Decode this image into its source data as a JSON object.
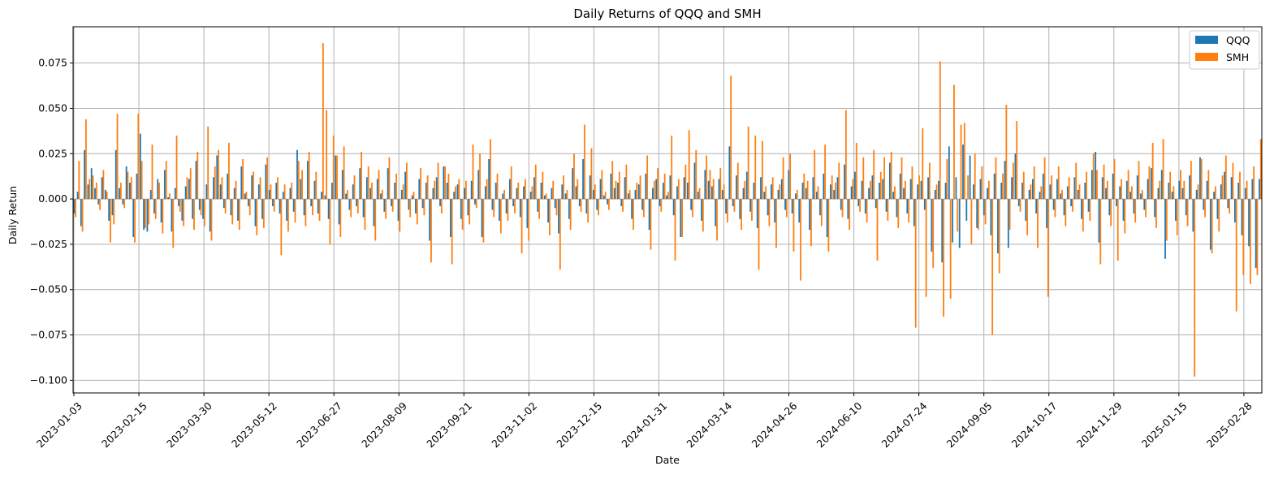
{
  "chart_data": {
    "type": "bar",
    "title": "Daily Returns of QQQ and SMH",
    "xlabel": "Date",
    "ylabel": "Daily Retun",
    "ylim": [
      -0.107,
      0.095
    ],
    "yticks": [
      -0.1,
      -0.075,
      -0.05,
      -0.025,
      0.0,
      0.025,
      0.05,
      0.075
    ],
    "ytick_labels": [
      "−0.100",
      "−0.075",
      "−0.050",
      "−0.025",
      "0.000",
      "0.025",
      "0.050",
      "0.075"
    ],
    "xticks": [
      "2023-01-03",
      "2023-02-15",
      "2023-03-30",
      "2023-05-12",
      "2023-06-27",
      "2023-08-09",
      "2023-09-21",
      "2023-11-02",
      "2023-12-15",
      "2024-01-31",
      "2024-03-14",
      "2024-04-26",
      "2024-06-10",
      "2024-07-24",
      "2024-09-05",
      "2024-10-17",
      "2024-11-29",
      "2025-01-15",
      "2025-02-28"
    ],
    "grid": true,
    "legend": "upper right",
    "series_colors": {
      "QQQ": "#1f77b4",
      "SMH": "#ff7f0e"
    },
    "series_trading_days_approx": 545,
    "series": [
      {
        "name": "QQQ",
        "values": [
          -0.008,
          0.004,
          -0.015,
          0.027,
          0.008,
          0.017,
          0.006,
          -0.003,
          0.012,
          0.005,
          -0.012,
          -0.009,
          0.027,
          0.006,
          -0.003,
          0.018,
          0.009,
          -0.021,
          0.014,
          0.036,
          -0.017,
          -0.018,
          0.005,
          -0.008,
          0.011,
          -0.013,
          0.016,
          0.001,
          -0.018,
          0.006,
          -0.004,
          -0.012,
          0.007,
          0.011,
          -0.011,
          0.021,
          -0.006,
          -0.011,
          0.008,
          -0.018,
          0.012,
          0.024,
          0.008,
          -0.005,
          0.014,
          -0.009,
          0.006,
          -0.012,
          0.018,
          0.003,
          -0.004,
          0.013,
          -0.015,
          0.008,
          -0.011,
          0.019,
          0.005,
          -0.004,
          0.009,
          -0.008,
          0.004,
          -0.012,
          0.006,
          -0.007,
          0.027,
          0.011,
          -0.009,
          0.021,
          -0.004,
          0.01,
          -0.008,
          0.004,
          0.002,
          -0.011,
          0.009,
          0.024,
          -0.014,
          0.016,
          0.003,
          -0.006,
          0.008,
          -0.004,
          0.017,
          -0.01,
          0.012,
          0.006,
          -0.015,
          0.011,
          0.003,
          -0.007,
          0.017,
          -0.004,
          0.009,
          -0.012,
          0.005,
          0.015,
          -0.006,
          0.002,
          -0.008,
          0.011,
          -0.005,
          0.009,
          -0.023,
          0.006,
          0.012,
          -0.004,
          0.018,
          0.009,
          -0.021,
          0.004,
          0.008,
          -0.011,
          0.006,
          -0.009,
          0.01,
          -0.003,
          0.016,
          -0.021,
          0.007,
          0.022,
          -0.006,
          0.009,
          -0.012,
          0.003,
          -0.008,
          0.011,
          -0.004,
          0.006,
          -0.01,
          0.007,
          -0.016,
          0.004,
          0.012,
          -0.007,
          0.009,
          0.002,
          -0.013,
          0.006,
          -0.005,
          -0.019,
          0.008,
          0.003,
          -0.011,
          0.017,
          0.007,
          -0.004,
          0.022,
          -0.008,
          0.013,
          0.005,
          -0.006,
          0.011,
          0.002,
          -0.003,
          0.014,
          0.006,
          0.009,
          -0.004,
          0.012,
          0.003,
          -0.011,
          0.005,
          0.008,
          -0.006,
          0.014,
          -0.017,
          0.006,
          0.011,
          -0.004,
          0.009,
          0.002,
          0.013,
          -0.009,
          0.007,
          -0.021,
          0.012,
          0.009,
          -0.006,
          0.02,
          0.004,
          -0.012,
          0.016,
          0.01,
          0.007,
          -0.015,
          0.011,
          0.005,
          -0.008,
          0.029,
          -0.004,
          0.013,
          -0.011,
          0.006,
          0.015,
          -0.007,
          0.009,
          -0.016,
          0.012,
          0.004,
          -0.009,
          0.008,
          -0.013,
          0.005,
          0.011,
          -0.006,
          0.016,
          -0.008,
          0.003,
          -0.013,
          0.009,
          0.006,
          -0.017,
          0.012,
          0.004,
          -0.009,
          0.014,
          -0.021,
          0.008,
          0.005,
          0.012,
          -0.006,
          0.019,
          -0.011,
          0.007,
          0.015,
          -0.004,
          0.01,
          -0.008,
          0.006,
          0.013,
          -0.005,
          0.009,
          0.011,
          -0.007,
          0.02,
          0.004,
          -0.01,
          0.014,
          0.006,
          -0.008,
          0.011,
          -0.015,
          0.008,
          0.01,
          -0.006,
          0.012,
          -0.029,
          0.005,
          0.01,
          -0.035,
          0.009,
          0.029,
          -0.024,
          0.012,
          -0.027,
          0.03,
          -0.012,
          0.024,
          0.008,
          -0.016,
          0.011,
          -0.009,
          0.006,
          -0.02,
          0.014,
          -0.03,
          0.009,
          0.021,
          -0.027,
          0.012,
          0.025,
          -0.004,
          0.009,
          -0.012,
          0.005,
          0.011,
          -0.008,
          0.004,
          0.014,
          -0.016,
          0.008,
          -0.006,
          0.011,
          0.003,
          -0.009,
          0.007,
          -0.004,
          0.012,
          0.005,
          -0.011,
          0.009,
          -0.007,
          0.016,
          0.026,
          -0.024,
          0.012,
          0.006,
          -0.009,
          0.014,
          -0.004,
          0.007,
          -0.012,
          0.01,
          0.004,
          -0.008,
          0.013,
          0.003,
          -0.006,
          0.011,
          0.017,
          -0.01,
          0.006,
          0.016,
          -0.033,
          0.009,
          0.004,
          -0.012,
          0.01,
          0.006,
          -0.009,
          0.013,
          -0.018,
          0.005,
          0.023,
          -0.006,
          0.01,
          -0.028,
          0.004,
          -0.011,
          0.008,
          0.015,
          -0.005,
          0.012,
          -0.013,
          0.009,
          -0.02,
          0.006,
          -0.026,
          0.011,
          -0.038,
          0.011
        ]
      },
      {
        "name": "SMH",
        "values": [
          -0.01,
          0.021,
          -0.018,
          0.044,
          0.011,
          0.013,
          0.009,
          -0.006,
          0.016,
          0.004,
          -0.024,
          -0.014,
          0.047,
          0.009,
          -0.005,
          0.015,
          0.012,
          -0.024,
          0.047,
          0.021,
          -0.016,
          -0.014,
          0.03,
          -0.011,
          0.009,
          -0.019,
          0.021,
          0.003,
          -0.027,
          0.035,
          -0.007,
          -0.015,
          0.012,
          0.017,
          -0.017,
          0.026,
          -0.009,
          -0.015,
          0.04,
          -0.023,
          0.018,
          0.027,
          0.012,
          -0.008,
          0.031,
          -0.014,
          0.01,
          -0.017,
          0.022,
          0.004,
          -0.009,
          0.015,
          -0.02,
          0.012,
          -0.016,
          0.023,
          0.008,
          -0.007,
          0.012,
          -0.031,
          0.008,
          -0.018,
          0.009,
          -0.013,
          0.021,
          0.016,
          -0.015,
          0.026,
          -0.009,
          0.015,
          -0.012,
          0.086,
          0.049,
          -0.025,
          0.035,
          0.024,
          -0.021,
          0.029,
          0.005,
          -0.01,
          0.013,
          -0.008,
          0.026,
          -0.017,
          0.018,
          0.009,
          -0.023,
          0.016,
          0.005,
          -0.011,
          0.023,
          -0.007,
          0.014,
          -0.018,
          0.008,
          0.02,
          -0.01,
          0.004,
          -0.014,
          0.017,
          -0.009,
          0.013,
          -0.035,
          0.01,
          0.02,
          -0.008,
          0.018,
          0.014,
          -0.036,
          0.007,
          0.011,
          -0.017,
          0.01,
          -0.014,
          0.03,
          -0.005,
          0.025,
          -0.024,
          0.011,
          0.033,
          -0.01,
          0.014,
          -0.019,
          0.005,
          -0.012,
          0.018,
          -0.008,
          0.009,
          -0.03,
          0.011,
          -0.023,
          0.007,
          0.019,
          -0.011,
          0.015,
          0.003,
          -0.02,
          0.01,
          -0.009,
          -0.039,
          0.013,
          0.005,
          -0.017,
          0.025,
          0.011,
          -0.007,
          0.041,
          -0.013,
          0.028,
          0.008,
          -0.009,
          0.016,
          0.004,
          -0.006,
          0.021,
          0.01,
          0.015,
          -0.007,
          0.019,
          0.005,
          -0.017,
          0.009,
          0.013,
          -0.01,
          0.024,
          -0.028,
          0.01,
          0.017,
          -0.007,
          0.014,
          0.004,
          0.035,
          -0.034,
          0.011,
          -0.021,
          0.019,
          0.038,
          -0.01,
          0.027,
          0.006,
          -0.018,
          0.024,
          0.016,
          0.011,
          -0.023,
          0.017,
          0.008,
          -0.013,
          0.068,
          -0.007,
          0.02,
          -0.017,
          0.01,
          0.04,
          -0.012,
          0.035,
          -0.039,
          0.032,
          0.007,
          -0.015,
          0.012,
          -0.027,
          0.008,
          0.023,
          -0.01,
          0.025,
          -0.029,
          0.005,
          -0.045,
          0.014,
          0.01,
          -0.026,
          0.027,
          0.007,
          -0.015,
          0.03,
          -0.029,
          0.013,
          0.009,
          0.02,
          -0.01,
          0.049,
          -0.017,
          0.011,
          0.031,
          -0.007,
          0.023,
          -0.013,
          0.01,
          0.027,
          -0.034,
          0.015,
          0.023,
          -0.012,
          0.026,
          0.007,
          -0.016,
          0.023,
          0.01,
          -0.013,
          0.018,
          -0.071,
          0.013,
          0.039,
          -0.054,
          0.02,
          -0.038,
          0.008,
          0.076,
          -0.065,
          0.022,
          -0.055,
          0.063,
          -0.018,
          0.041,
          0.042,
          0.013,
          -0.025,
          0.025,
          -0.017,
          0.018,
          -0.014,
          0.01,
          -0.075,
          0.023,
          -0.041,
          0.014,
          0.052,
          -0.017,
          0.02,
          0.043,
          -0.007,
          0.015,
          -0.02,
          0.008,
          0.018,
          -0.027,
          0.007,
          0.023,
          -0.054,
          0.013,
          -0.01,
          0.018,
          0.005,
          -0.015,
          0.012,
          -0.007,
          0.02,
          0.008,
          -0.018,
          0.015,
          -0.012,
          0.025,
          0.016,
          -0.036,
          0.019,
          0.01,
          -0.015,
          0.022,
          -0.034,
          0.011,
          -0.019,
          0.016,
          0.007,
          -0.013,
          0.021,
          0.005,
          -0.01,
          0.018,
          0.031,
          -0.016,
          0.01,
          0.033,
          -0.023,
          0.015,
          0.007,
          -0.02,
          0.016,
          0.01,
          -0.015,
          0.021,
          -0.098,
          0.008,
          0.022,
          -0.01,
          0.016,
          -0.03,
          0.007,
          -0.018,
          0.013,
          0.024,
          -0.008,
          0.02,
          -0.062,
          0.015,
          -0.042,
          0.01,
          -0.047,
          0.018,
          -0.042,
          0.033
        ]
      }
    ]
  }
}
